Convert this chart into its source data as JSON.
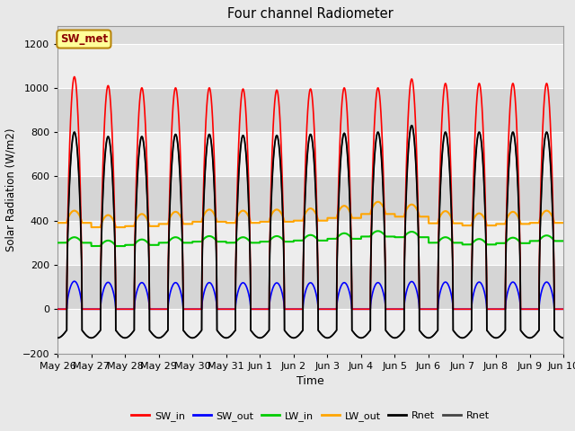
{
  "title": "Four channel Radiometer",
  "xlabel": "Time",
  "ylabel": "Solar Radiation (W/m2)",
  "ylim": [
    -200,
    1280
  ],
  "yticks": [
    -200,
    0,
    200,
    400,
    600,
    800,
    1000,
    1200
  ],
  "annotation": "SW_met",
  "annotation_color": "#8B0000",
  "annotation_bg": "#FFFF99",
  "annotation_border": "#B8860B",
  "fig_bg": "#E8E8E8",
  "plot_bg": "#DCDCDC",
  "colors": {
    "SW_in": "#FF0000",
    "SW_out": "#0000FF",
    "LW_in": "#00CC00",
    "LW_out": "#FFA500",
    "Rnet_black": "#000000",
    "Rnet_dark": "#444444"
  },
  "x_tick_labels": [
    "May 26",
    "May 27",
    "May 28",
    "May 29",
    "May 30",
    "May 31",
    "Jun 1",
    "Jun 2",
    "Jun 3",
    "Jun 4",
    "Jun 5",
    "Jun 6",
    "Jun 7",
    "Jun 8",
    "Jun 9",
    "Jun 10"
  ],
  "legend_entries": [
    "SW_in",
    "SW_out",
    "LW_in",
    "LW_out",
    "Rnet",
    "Rnet"
  ],
  "legend_colors": [
    "#FF0000",
    "#0000FF",
    "#00CC00",
    "#FFA500",
    "#000000",
    "#444444"
  ],
  "lw_in_day_values": [
    300,
    285,
    290,
    300,
    305,
    300,
    305,
    310,
    318,
    328,
    325,
    300,
    292,
    298,
    308
  ],
  "lw_out_day_values": [
    390,
    370,
    375,
    385,
    395,
    390,
    395,
    400,
    412,
    430,
    418,
    388,
    378,
    385,
    390
  ],
  "sw_in_peak_values": [
    1050,
    1010,
    1000,
    1000,
    1000,
    995,
    990,
    995,
    1000,
    1000,
    1040,
    1020,
    1020,
    1020,
    1020
  ],
  "rnet_peak_values": [
    800,
    780,
    780,
    790,
    790,
    785,
    785,
    790,
    795,
    800,
    830,
    800,
    800,
    800,
    800
  ]
}
